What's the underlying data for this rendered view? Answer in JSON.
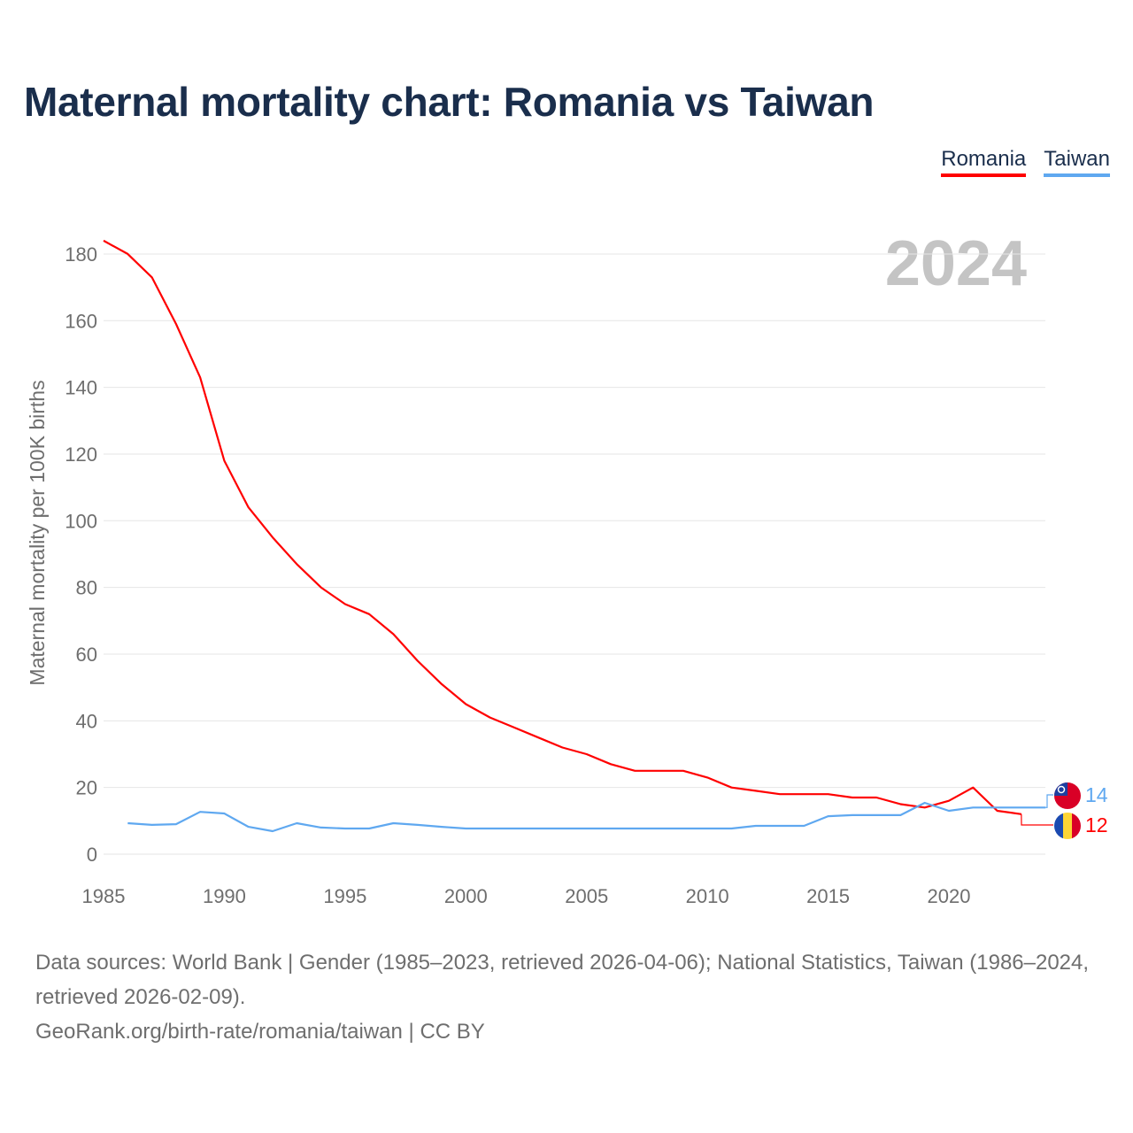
{
  "title": "Maternal mortality chart: Romania vs Taiwan",
  "legend": [
    {
      "name": "Romania",
      "color": "#ff0000"
    },
    {
      "name": "Taiwan",
      "color": "#5fa8f0"
    }
  ],
  "year_watermark": "2024",
  "source_line1": "Data sources: World Bank | Gender (1985–2023, retrieved 2026-04-06); National Statistics, Taiwan (1986–2024, retrieved 2026-02-09).",
  "source_line2": "GeoRank.org/birth-rate/romania/taiwan | CC BY",
  "chart_data": {
    "type": "line",
    "title": "Maternal mortality chart: Romania vs Taiwan",
    "xlabel": "",
    "ylabel": "Maternal mortality per 100K births",
    "xlim": [
      1985,
      2024
    ],
    "ylim": [
      0,
      185
    ],
    "yticks": [
      0,
      20,
      40,
      60,
      80,
      100,
      120,
      140,
      160,
      180
    ],
    "xticks": [
      1985,
      1990,
      1995,
      2000,
      2005,
      2010,
      2015,
      2020
    ],
    "grid": true,
    "legend_position": "top-right",
    "series": [
      {
        "name": "Romania",
        "color": "#ff0000",
        "end_label": "12",
        "x": [
          1985,
          1986,
          1987,
          1988,
          1989,
          1990,
          1991,
          1992,
          1993,
          1994,
          1995,
          1996,
          1997,
          1998,
          1999,
          2000,
          2001,
          2002,
          2003,
          2004,
          2005,
          2006,
          2007,
          2008,
          2009,
          2010,
          2011,
          2012,
          2013,
          2014,
          2015,
          2016,
          2017,
          2018,
          2019,
          2020,
          2021,
          2022,
          2023
        ],
        "values": [
          184,
          180,
          173,
          159,
          143,
          118,
          104,
          95,
          87,
          80,
          75,
          72,
          66,
          58,
          51,
          45,
          41,
          38,
          35,
          32,
          30,
          27,
          25,
          25,
          25,
          23,
          20,
          19,
          18,
          18,
          18,
          17,
          17,
          15,
          14,
          16,
          20,
          13,
          12
        ]
      },
      {
        "name": "Taiwan",
        "color": "#5fa8f0",
        "end_label": "14",
        "x": [
          1986,
          1987,
          1988,
          1989,
          1990,
          1991,
          1992,
          1993,
          1994,
          1995,
          1996,
          1997,
          1998,
          1999,
          2000,
          2001,
          2002,
          2003,
          2004,
          2005,
          2006,
          2007,
          2008,
          2009,
          2010,
          2011,
          2012,
          2013,
          2014,
          2015,
          2016,
          2017,
          2018,
          2019,
          2020,
          2021,
          2022,
          2023,
          2024
        ],
        "values": [
          9.3,
          8.8,
          9,
          12.7,
          12.2,
          8.2,
          6.9,
          9.3,
          8,
          7.7,
          7.7,
          9.3,
          8.8,
          8.2,
          7.7,
          7.7,
          7.7,
          7.7,
          7.7,
          7.7,
          7.7,
          7.7,
          7.7,
          7.7,
          7.7,
          7.7,
          8.5,
          8.5,
          8.5,
          11.4,
          11.7,
          11.7,
          11.7,
          15.4,
          13,
          14,
          14,
          14,
          14
        ]
      }
    ]
  }
}
